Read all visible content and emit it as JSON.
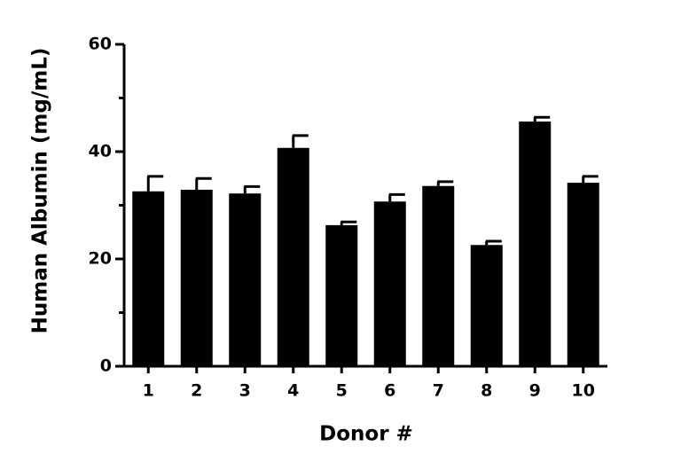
{
  "chart_data": {
    "type": "bar",
    "x_label": "Donor #",
    "y_label": "Human Albumin (mg/mL)",
    "categories": [
      "1",
      "2",
      "3",
      "4",
      "5",
      "6",
      "7",
      "8",
      "9",
      "10"
    ],
    "values": [
      32.6,
      32.9,
      32.2,
      40.7,
      26.3,
      30.7,
      33.6,
      22.6,
      45.6,
      34.2
    ],
    "errors": [
      2.8,
      2.1,
      1.3,
      2.3,
      0.6,
      1.3,
      0.8,
      0.7,
      0.8,
      1.2
    ],
    "color": "#000000",
    "ylim": [
      0,
      60
    ],
    "yticks": [
      0,
      20,
      40,
      60
    ],
    "minor_yticks": [
      10,
      30,
      50
    ],
    "grid": false
  }
}
